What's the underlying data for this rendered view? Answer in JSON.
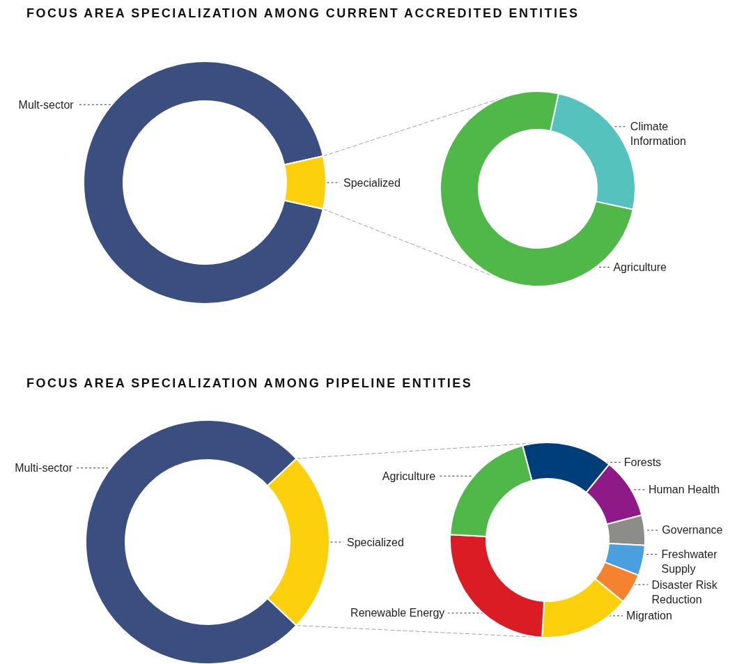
{
  "chart_data": [
    {
      "type": "donut",
      "title": "FOCUS AREA SPECIALIZATION AMONG CURRENT ACCREDITED ENTITIES",
      "categories": [
        "Mult-sector",
        "Specialized"
      ],
      "values": [
        93,
        7
      ],
      "colors": [
        "#3a4e80",
        "#fcd00c"
      ]
    },
    {
      "type": "donut",
      "categories": [
        "Climate Information",
        "Agriculture"
      ],
      "values": [
        25,
        75
      ],
      "colors": [
        "#56c2bd",
        "#50b848"
      ]
    },
    {
      "type": "donut",
      "title": "FOCUS AREA SPECIALIZATION AMONG PIPELINE ENTITIES",
      "categories": [
        "Multi-sector",
        "Specialized"
      ],
      "values": [
        76,
        24
      ],
      "colors": [
        "#3a4e80",
        "#fcd00c"
      ]
    },
    {
      "type": "donut",
      "categories": [
        "Forests",
        "Human Health",
        "Governance",
        "Freshwater Supply",
        "Disaster Risk Reduction",
        "Migration",
        "Renewable Energy",
        "Agriculture"
      ],
      "values": [
        15,
        10,
        5,
        5,
        5,
        15,
        25,
        20
      ],
      "colors": [
        "#003e7a",
        "#8e1a87",
        "#8c8c88",
        "#4aa0de",
        "#f5822f",
        "#fdd00e",
        "#da1c24",
        "#50b848"
      ]
    }
  ]
}
